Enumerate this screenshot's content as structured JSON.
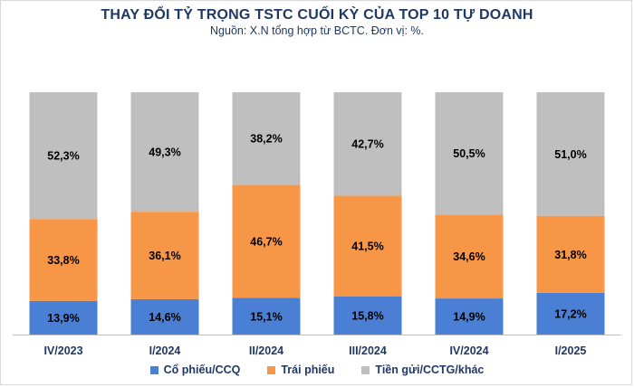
{
  "chart_data": {
    "type": "bar",
    "stacked": true,
    "title": "THAY ĐỔI TỶ TRỌNG TSTC CUỐI KỲ CỦA TOP 10 TỰ DOANH",
    "subtitle": "Nguồn: X.N tổng hợp từ BCTC. Đơn vị: %.",
    "categories": [
      "IV/2023",
      "I/2024",
      "II/2024",
      "III/2024",
      "IV/2024",
      "I/2025"
    ],
    "series": [
      {
        "name": "Cổ phiếu/CCQ",
        "color": "#4a7fd4",
        "values": [
          13.9,
          14.6,
          15.1,
          15.8,
          14.9,
          17.2
        ],
        "labels": [
          "13,9%",
          "14,6%",
          "15,1%",
          "15,8%",
          "14,9%",
          "17,2%"
        ]
      },
      {
        "name": "Trái phiếu",
        "color": "#f79646",
        "values": [
          33.8,
          36.1,
          46.7,
          41.5,
          34.6,
          31.8
        ],
        "labels": [
          "33,8%",
          "36,1%",
          "46,7%",
          "41,5%",
          "34,6%",
          "31,8%"
        ]
      },
      {
        "name": "Tiền gửi/CCTG/khác",
        "color": "#bfbfbf",
        "values": [
          52.3,
          49.3,
          38.2,
          42.7,
          50.5,
          51.0
        ],
        "labels": [
          "52,3%",
          "49,3%",
          "38,2%",
          "42,7%",
          "50,5%",
          "51,0%"
        ]
      }
    ],
    "ylim": [
      0,
      100
    ],
    "grid": false,
    "legend": "bottom"
  }
}
